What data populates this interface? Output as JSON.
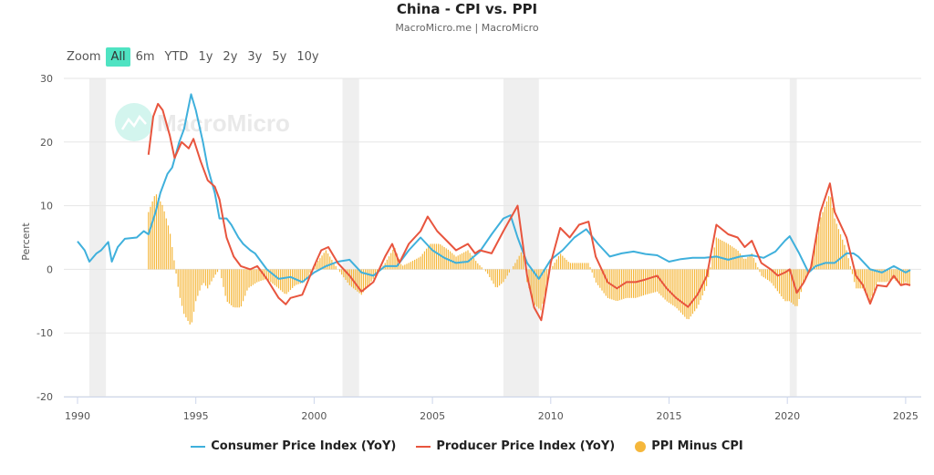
{
  "title": "China - CPI vs. PPI",
  "subtitle": "MacroMicro.me | MacroMicro",
  "watermark": "MacroMicro",
  "range_selector": {
    "label": "Zoom",
    "buttons": [
      "All",
      "6m",
      "YTD",
      "1y",
      "2y",
      "3y",
      "5y",
      "10y"
    ],
    "active": "All"
  },
  "colors": {
    "cpi": "#3fb0dc",
    "ppi": "#e8553e",
    "diff": "#f5b73b",
    "recession": "#efefef",
    "active_button": "#4fe3c2"
  },
  "chart_data": {
    "type": "line",
    "ylabel": "Percent",
    "ylim": [
      -20,
      30
    ],
    "yticks": [
      "30",
      "20",
      "10",
      "0",
      "-10",
      "-20"
    ],
    "xlim": [
      1989.9,
      2025.6
    ],
    "xticks": [
      "1990",
      "1995",
      "2000",
      "2005",
      "2010",
      "2015",
      "2020",
      "2025"
    ],
    "grid": true,
    "legend_position": "bottom",
    "shaded_periods": [
      [
        1990.5,
        1991.2
      ],
      [
        2001.2,
        2001.9
      ],
      [
        2008.0,
        2009.5
      ],
      [
        2020.1,
        2020.4
      ]
    ],
    "series": [
      {
        "name": "Consumer Price Index (YoY)",
        "type": "line",
        "points": [
          [
            1990.0,
            4.4
          ],
          [
            1990.3,
            3
          ],
          [
            1990.5,
            1.2
          ],
          [
            1990.8,
            2.5
          ],
          [
            1991.0,
            3
          ],
          [
            1991.3,
            4.3
          ],
          [
            1991.45,
            1.2
          ],
          [
            1991.7,
            3.5
          ],
          [
            1992.0,
            4.8
          ],
          [
            1992.5,
            5
          ],
          [
            1992.8,
            6
          ],
          [
            1993.0,
            5.5
          ],
          [
            1993.3,
            9
          ],
          [
            1993.5,
            12
          ],
          [
            1993.8,
            15
          ],
          [
            1994.0,
            16
          ],
          [
            1994.3,
            20
          ],
          [
            1994.5,
            22
          ],
          [
            1994.8,
            27.5
          ],
          [
            1995.0,
            25
          ],
          [
            1995.3,
            20
          ],
          [
            1995.5,
            16
          ],
          [
            1995.8,
            12
          ],
          [
            1996.0,
            8
          ],
          [
            1996.3,
            8
          ],
          [
            1996.5,
            7
          ],
          [
            1996.8,
            5
          ],
          [
            1997.0,
            4
          ],
          [
            1997.3,
            3
          ],
          [
            1997.5,
            2.5
          ],
          [
            1997.8,
            1
          ],
          [
            1998.0,
            0
          ],
          [
            1998.5,
            -1.5
          ],
          [
            1999.0,
            -1.2
          ],
          [
            1999.5,
            -2
          ],
          [
            2000.0,
            -0.5
          ],
          [
            2000.5,
            0.5
          ],
          [
            2001.0,
            1.2
          ],
          [
            2001.5,
            1.5
          ],
          [
            2002.0,
            -0.5
          ],
          [
            2002.5,
            -1
          ],
          [
            2003.0,
            0.5
          ],
          [
            2003.5,
            0.5
          ],
          [
            2004.0,
            3
          ],
          [
            2004.5,
            5
          ],
          [
            2005.0,
            3
          ],
          [
            2005.5,
            1.8
          ],
          [
            2006.0,
            1
          ],
          [
            2006.5,
            1.2
          ],
          [
            2007.0,
            2.8
          ],
          [
            2007.5,
            5.5
          ],
          [
            2008.0,
            8
          ],
          [
            2008.3,
            8.5
          ],
          [
            2008.6,
            5
          ],
          [
            2009.0,
            1
          ],
          [
            2009.5,
            -1.5
          ],
          [
            2010.0,
            1.5
          ],
          [
            2010.5,
            3
          ],
          [
            2011.0,
            5
          ],
          [
            2011.5,
            6.3
          ],
          [
            2012.0,
            4
          ],
          [
            2012.5,
            2
          ],
          [
            2013.0,
            2.5
          ],
          [
            2013.5,
            2.8
          ],
          [
            2014.0,
            2.4
          ],
          [
            2014.5,
            2.2
          ],
          [
            2015.0,
            1.2
          ],
          [
            2015.5,
            1.6
          ],
          [
            2016.0,
            1.8
          ],
          [
            2016.5,
            1.8
          ],
          [
            2017.0,
            2
          ],
          [
            2017.5,
            1.5
          ],
          [
            2018.0,
            2
          ],
          [
            2018.5,
            2.2
          ],
          [
            2019.0,
            1.8
          ],
          [
            2019.5,
            2.8
          ],
          [
            2019.9,
            4.5
          ],
          [
            2020.1,
            5.2
          ],
          [
            2020.5,
            2.5
          ],
          [
            2020.9,
            -0.5
          ],
          [
            2021.2,
            0.5
          ],
          [
            2021.6,
            1
          ],
          [
            2022.0,
            1
          ],
          [
            2022.5,
            2.5
          ],
          [
            2022.8,
            2.5
          ],
          [
            2023.0,
            2
          ],
          [
            2023.5,
            0
          ],
          [
            2024.0,
            -0.5
          ],
          [
            2024.5,
            0.5
          ],
          [
            2025.0,
            -0.5
          ],
          [
            2025.2,
            -0.1
          ]
        ]
      },
      {
        "name": "Producer Price Index (YoY)",
        "type": "line",
        "points": [
          [
            1993.0,
            18
          ],
          [
            1993.2,
            24
          ],
          [
            1993.4,
            26
          ],
          [
            1993.6,
            25
          ],
          [
            1993.9,
            21
          ],
          [
            1994.1,
            17.5
          ],
          [
            1994.4,
            20
          ],
          [
            1994.7,
            19
          ],
          [
            1994.9,
            20.5
          ],
          [
            1995.2,
            17
          ],
          [
            1995.5,
            14
          ],
          [
            1995.8,
            13
          ],
          [
            1996.0,
            11
          ],
          [
            1996.3,
            5
          ],
          [
            1996.6,
            2
          ],
          [
            1996.9,
            0.5
          ],
          [
            1997.3,
            0
          ],
          [
            1997.6,
            0.5
          ],
          [
            1998.0,
            -1.5
          ],
          [
            1998.5,
            -4.5
          ],
          [
            1998.8,
            -5.5
          ],
          [
            1999.0,
            -4.5
          ],
          [
            1999.5,
            -4
          ],
          [
            2000.0,
            0.5
          ],
          [
            2000.3,
            3
          ],
          [
            2000.6,
            3.5
          ],
          [
            2001.0,
            1
          ],
          [
            2001.5,
            -1
          ],
          [
            2002.0,
            -3.5
          ],
          [
            2002.5,
            -2
          ],
          [
            2003.0,
            2
          ],
          [
            2003.3,
            4
          ],
          [
            2003.6,
            1
          ],
          [
            2004.0,
            4
          ],
          [
            2004.5,
            6
          ],
          [
            2004.8,
            8.3
          ],
          [
            2005.2,
            6
          ],
          [
            2005.6,
            4.5
          ],
          [
            2006.0,
            3
          ],
          [
            2006.5,
            4
          ],
          [
            2006.8,
            2.5
          ],
          [
            2007.0,
            3
          ],
          [
            2007.5,
            2.5
          ],
          [
            2008.0,
            6
          ],
          [
            2008.6,
            10
          ],
          [
            2009.0,
            -1
          ],
          [
            2009.3,
            -6
          ],
          [
            2009.6,
            -8
          ],
          [
            2010.0,
            1
          ],
          [
            2010.4,
            6.5
          ],
          [
            2010.8,
            5
          ],
          [
            2011.2,
            7
          ],
          [
            2011.6,
            7.5
          ],
          [
            2011.9,
            2
          ],
          [
            2012.4,
            -2
          ],
          [
            2012.8,
            -3
          ],
          [
            2013.2,
            -2
          ],
          [
            2013.6,
            -2
          ],
          [
            2014.0,
            -1.6
          ],
          [
            2014.5,
            -1
          ],
          [
            2014.9,
            -3
          ],
          [
            2015.3,
            -4.5
          ],
          [
            2015.8,
            -5.9
          ],
          [
            2016.2,
            -4
          ],
          [
            2016.6,
            -1
          ],
          [
            2017.0,
            7
          ],
          [
            2017.5,
            5.5
          ],
          [
            2017.9,
            5
          ],
          [
            2018.2,
            3.5
          ],
          [
            2018.5,
            4.5
          ],
          [
            2018.9,
            1
          ],
          [
            2019.3,
            0
          ],
          [
            2019.6,
            -1
          ],
          [
            2019.9,
            -0.5
          ],
          [
            2020.1,
            0
          ],
          [
            2020.4,
            -3.7
          ],
          [
            2020.7,
            -2
          ],
          [
            2021.0,
            0.3
          ],
          [
            2021.4,
            9
          ],
          [
            2021.8,
            13.5
          ],
          [
            2022.0,
            9
          ],
          [
            2022.5,
            5
          ],
          [
            2022.9,
            -1
          ],
          [
            2023.2,
            -2.5
          ],
          [
            2023.5,
            -5.4
          ],
          [
            2023.8,
            -2.5
          ],
          [
            2024.2,
            -2.7
          ],
          [
            2024.5,
            -1
          ],
          [
            2024.8,
            -2.5
          ],
          [
            2025.0,
            -2.3
          ],
          [
            2025.2,
            -2.5
          ]
        ]
      },
      {
        "name": "PPI Minus CPI",
        "type": "bar",
        "points": [
          [
            1993.0,
            9
          ],
          [
            1993.3,
            12
          ],
          [
            1993.6,
            10
          ],
          [
            1993.9,
            6
          ],
          [
            1994.1,
            1
          ],
          [
            1994.3,
            -4
          ],
          [
            1994.5,
            -7
          ],
          [
            1994.8,
            -9
          ],
          [
            1995.0,
            -5
          ],
          [
            1995.3,
            -2
          ],
          [
            1995.5,
            -3
          ],
          [
            1995.8,
            -1
          ],
          [
            1996.0,
            0
          ],
          [
            1996.3,
            -5
          ],
          [
            1996.6,
            -6
          ],
          [
            1996.9,
            -6
          ],
          [
            1997.2,
            -3
          ],
          [
            1997.6,
            -2
          ],
          [
            1998.0,
            -1.5
          ],
          [
            1998.5,
            -3
          ],
          [
            1998.8,
            -4
          ],
          [
            1999.2,
            -2.5
          ],
          [
            1999.6,
            -2
          ],
          [
            2000.0,
            0.5
          ],
          [
            2000.5,
            3
          ],
          [
            2001.0,
            0
          ],
          [
            2001.5,
            -2.5
          ],
          [
            2002.0,
            -4
          ],
          [
            2002.5,
            -1.5
          ],
          [
            2003.0,
            1
          ],
          [
            2003.4,
            3.5
          ],
          [
            2003.7,
            0.5
          ],
          [
            2004.0,
            1
          ],
          [
            2004.5,
            2
          ],
          [
            2004.9,
            4
          ],
          [
            2005.3,
            4
          ],
          [
            2005.7,
            3
          ],
          [
            2006.0,
            2
          ],
          [
            2006.5,
            3
          ],
          [
            2006.9,
            1
          ],
          [
            2007.3,
            -0.5
          ],
          [
            2007.7,
            -3
          ],
          [
            2008.0,
            -2
          ],
          [
            2008.5,
            1
          ],
          [
            2008.8,
            3
          ],
          [
            2009.0,
            -2
          ],
          [
            2009.3,
            -5.5
          ],
          [
            2009.6,
            -6.5
          ],
          [
            2010.0,
            0
          ],
          [
            2010.4,
            2.5
          ],
          [
            2010.8,
            1
          ],
          [
            2011.2,
            1
          ],
          [
            2011.6,
            1
          ],
          [
            2011.9,
            -2
          ],
          [
            2012.4,
            -4.5
          ],
          [
            2012.8,
            -5
          ],
          [
            2013.2,
            -4.5
          ],
          [
            2013.6,
            -4.5
          ],
          [
            2014.0,
            -4
          ],
          [
            2014.5,
            -3.5
          ],
          [
            2014.9,
            -5
          ],
          [
            2015.3,
            -6
          ],
          [
            2015.8,
            -8
          ],
          [
            2016.2,
            -6
          ],
          [
            2016.6,
            -2.5
          ],
          [
            2017.0,
            5
          ],
          [
            2017.5,
            4
          ],
          [
            2017.9,
            3
          ],
          [
            2018.2,
            1.5
          ],
          [
            2018.5,
            2.5
          ],
          [
            2018.9,
            -1
          ],
          [
            2019.3,
            -2
          ],
          [
            2019.6,
            -3.5
          ],
          [
            2019.9,
            -5
          ],
          [
            2020.1,
            -5
          ],
          [
            2020.4,
            -6
          ],
          [
            2020.7,
            -2
          ],
          [
            2021.0,
            0.5
          ],
          [
            2021.4,
            8
          ],
          [
            2021.8,
            12
          ],
          [
            2022.0,
            8
          ],
          [
            2022.5,
            3
          ],
          [
            2022.9,
            -3
          ],
          [
            2023.2,
            -3
          ],
          [
            2023.5,
            -5
          ],
          [
            2023.8,
            -2
          ],
          [
            2024.2,
            -2
          ],
          [
            2024.5,
            -1.5
          ],
          [
            2024.8,
            -2.5
          ],
          [
            2025.0,
            -2
          ],
          [
            2025.2,
            -2.5
          ]
        ]
      }
    ]
  }
}
